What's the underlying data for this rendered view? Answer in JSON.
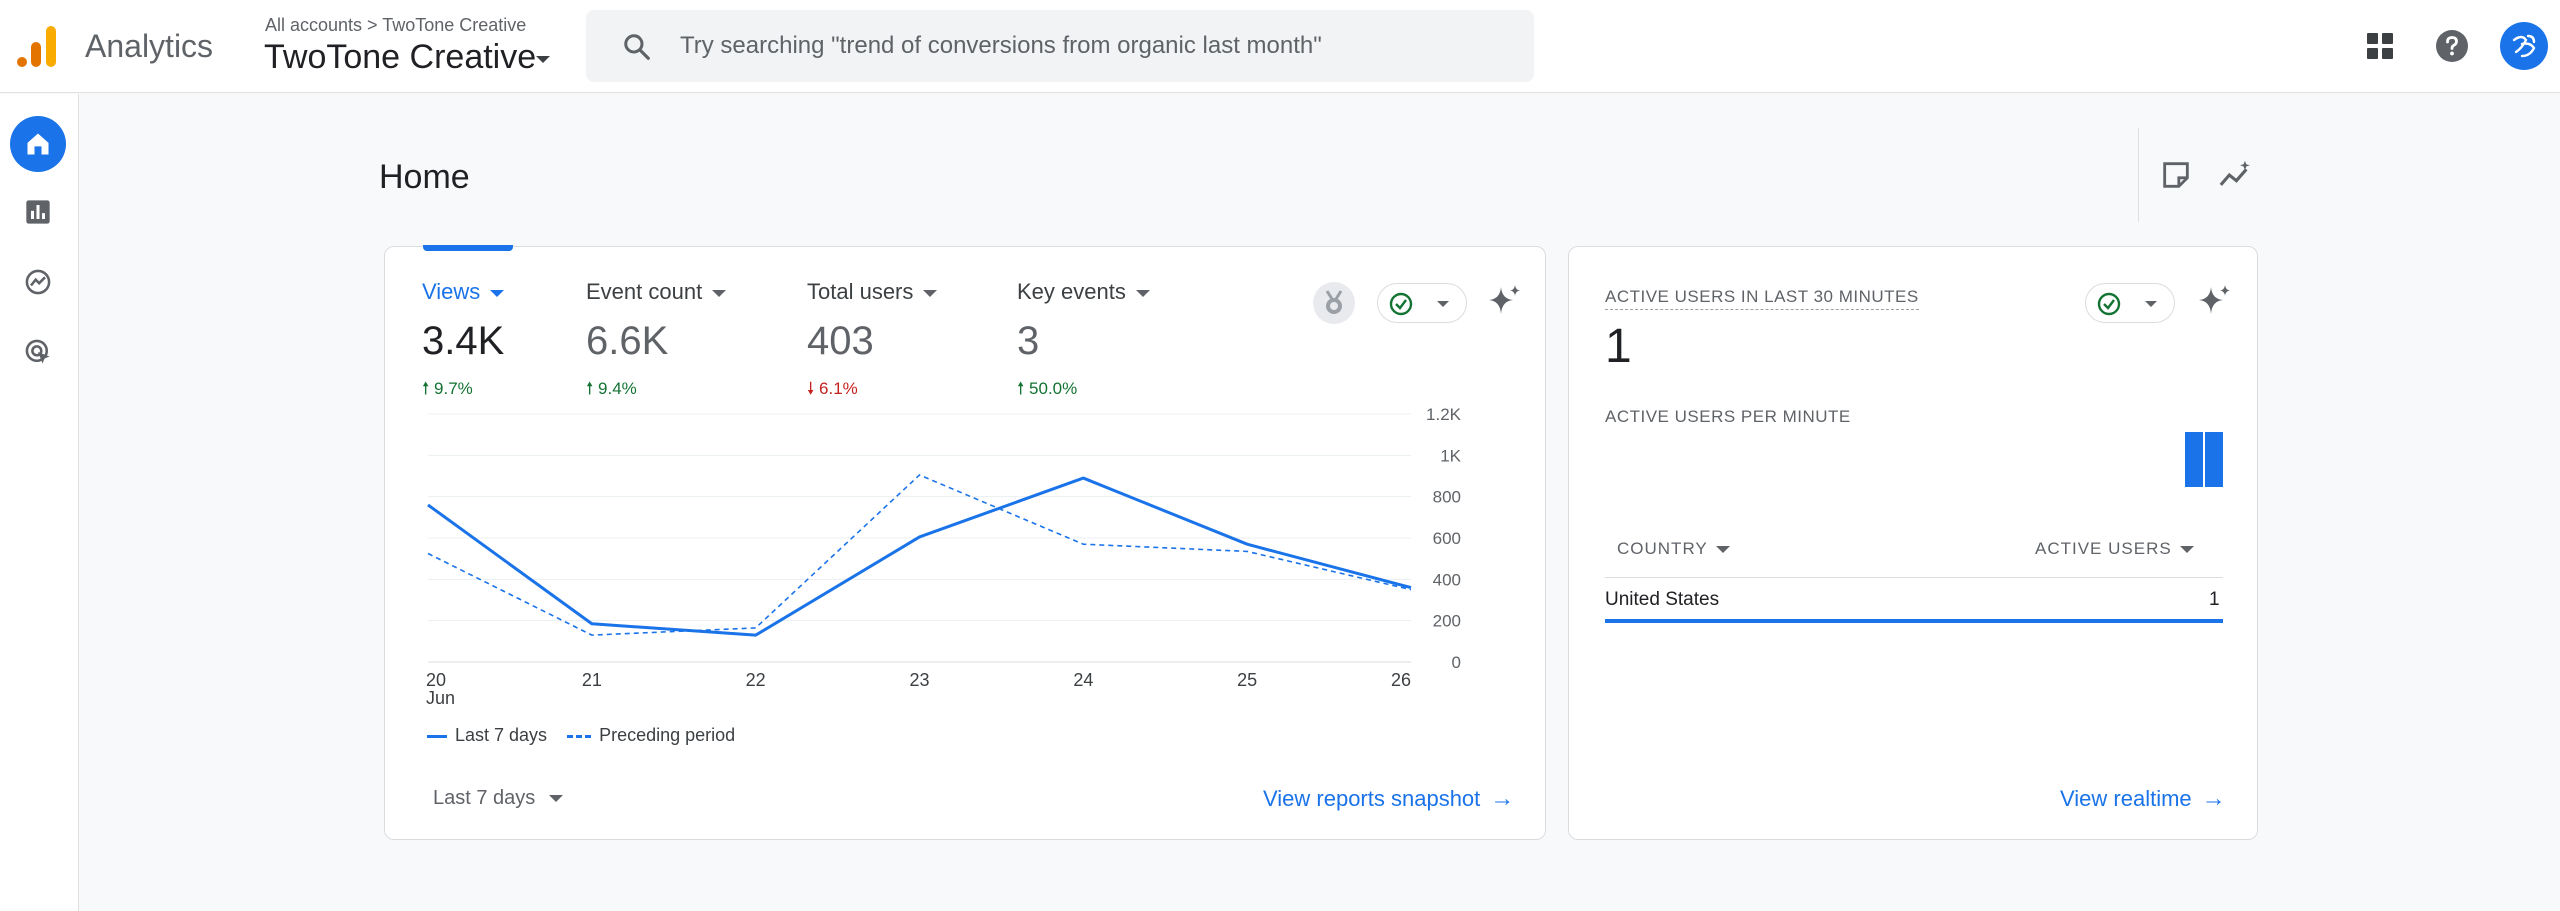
{
  "header": {
    "app_name": "Analytics",
    "breadcrumb": "All accounts > TwoTone Creative",
    "account_name": "TwoTone Creative",
    "search_placeholder": "Try searching \"trend of conversions from organic last month\""
  },
  "page": {
    "title": "Home"
  },
  "overview": {
    "metrics": [
      {
        "label": "Views",
        "value": "3.4K",
        "delta": "9.7%",
        "direction": "up",
        "selected": true
      },
      {
        "label": "Event count",
        "value": "6.6K",
        "delta": "9.4%",
        "direction": "up",
        "selected": false
      },
      {
        "label": "Total users",
        "value": "403",
        "delta": "6.1%",
        "direction": "down",
        "selected": false
      },
      {
        "label": "Key events",
        "value": "3",
        "delta": "50.0%",
        "direction": "up",
        "selected": false
      }
    ],
    "legend": {
      "current": "Last 7 days",
      "previous": "Preceding period"
    },
    "date_range": "Last 7 days",
    "link": "View reports snapshot"
  },
  "chart_data": {
    "type": "line",
    "x": [
      "20",
      "21",
      "22",
      "23",
      "24",
      "25",
      "26"
    ],
    "x_sub_label": "Jun",
    "y_ticks": [
      "0",
      "200",
      "400",
      "600",
      "800",
      "1K",
      "1.2K"
    ],
    "ylim": [
      0,
      1200
    ],
    "y_axis_side": "right",
    "grid": true,
    "legend_position": "bottom-left",
    "series": [
      {
        "name": "Last 7 days",
        "style": "solid",
        "values": [
          760,
          185,
          130,
          605,
          890,
          570,
          360
        ]
      },
      {
        "name": "Preceding period",
        "style": "dashed",
        "values": [
          525,
          130,
          165,
          905,
          570,
          535,
          350
        ]
      }
    ]
  },
  "realtime": {
    "title": "ACTIVE USERS IN LAST 30 MINUTES",
    "value": "1",
    "per_minute_title": "ACTIVE USERS PER MINUTE",
    "per_minute": [
      0,
      0,
      0,
      0,
      0,
      0,
      0,
      0,
      0,
      0,
      0,
      0,
      0,
      0,
      0,
      0,
      0,
      0,
      0,
      0,
      0,
      0,
      0,
      0,
      0,
      0,
      0,
      0,
      1,
      1
    ],
    "col_country": "COUNTRY",
    "col_users": "ACTIVE USERS",
    "rows": [
      {
        "country": "United States",
        "users": "1"
      }
    ],
    "link": "View realtime"
  },
  "colors": {
    "accent": "#1a73e8",
    "positive": "#137333",
    "negative": "#c5221f",
    "logo_orange": "#f9ab00",
    "logo_red": "#e37400"
  }
}
